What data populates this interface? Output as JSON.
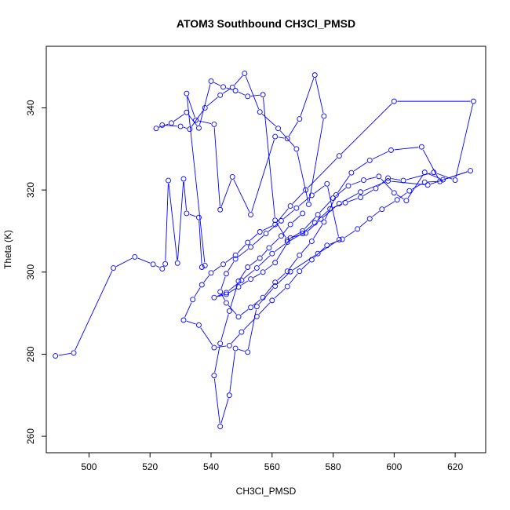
{
  "chart_data": {
    "type": "line",
    "title": "ATOM3 Southbound CH3Cl_PMSD",
    "xlabel": "CH3Cl_PMSD",
    "ylabel": "Theta (K)",
    "xlim": [
      486,
      630
    ],
    "ylim": [
      256,
      355
    ],
    "xticks": [
      500,
      520,
      540,
      560,
      580,
      600,
      620
    ],
    "yticks": [
      260,
      280,
      300,
      320,
      340
    ],
    "grid": false,
    "legend": "none",
    "series_color": "#0000ff",
    "markers": "open-circle",
    "series": [
      {
        "x": [
          489,
          495,
          508,
          515,
          521,
          524,
          525,
          526,
          529,
          531,
          532,
          536,
          537,
          538,
          532,
          535,
          541,
          543,
          547,
          553,
          561,
          565,
          569,
          574,
          577,
          572,
          568,
          562,
          556,
          551,
          547,
          543,
          538,
          533,
          530,
          524,
          522,
          527,
          532,
          536,
          540,
          544,
          548,
          552,
          557,
          561,
          565,
          570,
          575,
          580,
          585,
          590,
          595,
          600,
          604,
          610,
          616,
          625,
          611,
          598,
          589,
          582,
          576,
          571,
          566,
          561,
          557,
          553,
          549,
          545,
          541,
          545,
          550,
          555,
          560,
          565,
          570,
          574,
          579,
          584,
          589,
          594,
          598,
          603,
          613,
          620,
          626,
          600,
          582,
          571,
          566,
          561,
          556,
          552,
          548,
          544,
          540,
          537,
          534,
          531,
          536,
          541,
          546,
          550,
          555,
          560,
          565,
          569,
          573,
          578,
          583,
          588,
          592,
          596,
          601,
          605,
          610,
          615,
          609,
          599,
          592,
          586,
          581,
          577,
          573,
          569,
          565,
          561,
          557,
          553,
          549,
          545,
          543,
          545,
          548,
          553,
          558,
          563,
          568,
          573,
          578,
          582,
          575,
          566,
          561,
          555,
          552,
          548,
          546,
          543,
          541,
          543,
          546,
          549,
          552,
          556,
          559,
          563,
          566,
          570
        ],
        "y": [
          279.6,
          280.3,
          301,
          303.7,
          301.9,
          300.8,
          302,
          322.3,
          302.2,
          322.7,
          314.3,
          313.3,
          301.2,
          301.6,
          343.5,
          337,
          336,
          315.2,
          323.2,
          314,
          333,
          332.5,
          337.3,
          348,
          338,
          316.5,
          330,
          335,
          339,
          348.4,
          345,
          343.1,
          340,
          334.8,
          335.5,
          335.8,
          335,
          336.3,
          338.9,
          335.1,
          346.5,
          345.1,
          344.2,
          342.8,
          343.2,
          312.6,
          307.8,
          310,
          314,
          318,
          321,
          322.4,
          323.3,
          319.3,
          317.4,
          324.3,
          322.5,
          324.7,
          321.2,
          322.2,
          319.5,
          316.7,
          312.9,
          309.5,
          308.3,
          302.3,
          300,
          298.3,
          296.4,
          294.6,
          293.8,
          295,
          298,
          301,
          304.5,
          307.3,
          309.4,
          312,
          315.4,
          316.9,
          318.2,
          320.4,
          322.9,
          322.3,
          324.3,
          322.4,
          341.6,
          341.6,
          328.3,
          320,
          316.1,
          311.6,
          309.8,
          307.2,
          304.1,
          301.9,
          299.8,
          296.9,
          293.3,
          288.3,
          287.1,
          281.6,
          282.1,
          285.4,
          289.2,
          293.1,
          296.5,
          300.2,
          303,
          306.5,
          308,
          310.5,
          313,
          315.3,
          317.6,
          319.8,
          321.9,
          322.1,
          330.5,
          329.7,
          327.2,
          324.2,
          318.8,
          312.2,
          307.5,
          304.1,
          300.2,
          297.5,
          293.8,
          291.4,
          289.1,
          292.5,
          295.2,
          299.6,
          303.2,
          306.1,
          309.4,
          312.5,
          315.6,
          318.7,
          321.5,
          307.9,
          304.5,
          300.1,
          296.6,
          291.6,
          280.5,
          281.4,
          270,
          262.4,
          274.8,
          282.6,
          290.5,
          297.8,
          301.2,
          303.4,
          305.9,
          308.8,
          311.6,
          314.3
        ]
      }
    ]
  }
}
